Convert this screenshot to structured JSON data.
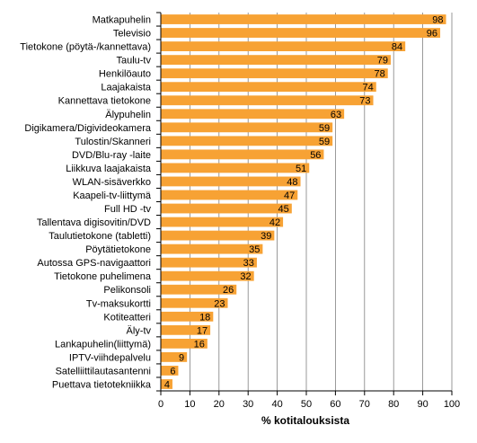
{
  "chart_data": {
    "type": "bar",
    "orientation": "horizontal",
    "categories": [
      "Matkapuhelin",
      "Televisio",
      "Tietokone (pöytä-/kannettava)",
      "Taulu-tv",
      "Henkilöauto",
      "Laajakaista",
      "Kannettava tietokone",
      "Älypuhelin",
      "Digikamera/Digivideokamera",
      "Tulostin/Skanneri",
      "DVD/Blu-ray -laite",
      "Liikkuva laajakaista",
      "WLAN-sisäverkko",
      "Kaapeli-tv-liittymä",
      "Full HD -tv",
      "Tallentava digisovitin/DVD",
      "Taulutietokone (tabletti)",
      "Pöytätietokone",
      "Autossa GPS-navigaattori",
      "Tietokone puhelimena",
      "Pelikonsoli",
      "Tv-maksukortti",
      "Kotiteatteri",
      "Äly-tv",
      "Lankapuhelin(liittymä)",
      "IPTV-viihdepalvelu",
      "Satelliittilautasantenni",
      "Puettava tietotekniikka"
    ],
    "values": [
      98,
      96,
      84,
      79,
      78,
      74,
      73,
      63,
      59,
      59,
      56,
      51,
      48,
      47,
      45,
      42,
      39,
      35,
      33,
      32,
      26,
      23,
      18,
      17,
      16,
      9,
      6,
      4
    ],
    "xlabel": "% kotitalouksista",
    "xlim": [
      0,
      100
    ],
    "xticks": [
      0,
      10,
      20,
      30,
      40,
      50,
      60,
      70,
      80,
      90,
      100
    ],
    "grid": true,
    "legend": "none",
    "bar_color": "#F7A234",
    "grid_color": "#808080"
  }
}
